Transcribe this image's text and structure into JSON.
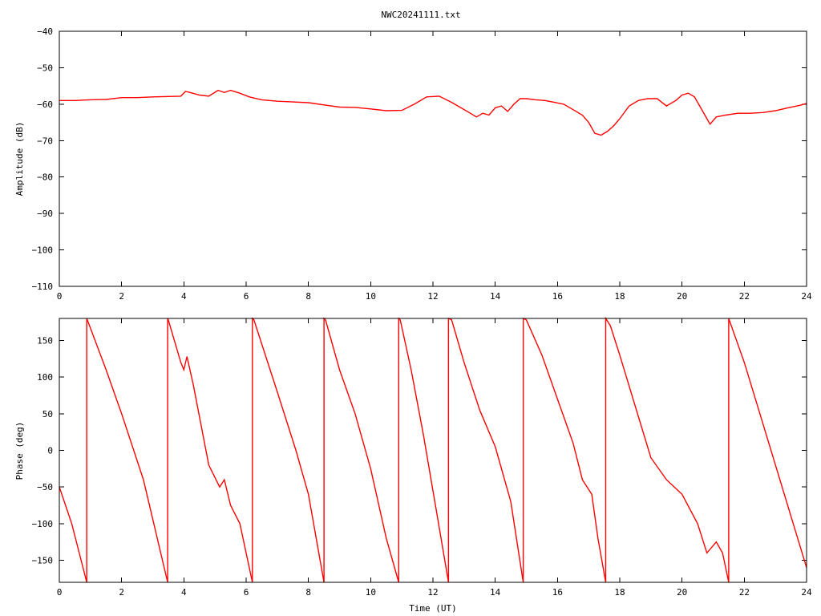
{
  "chart_data": [
    {
      "type": "line",
      "title": "NWC20241111.txt",
      "xlabel": "",
      "ylabel": "Amplitude (dB)",
      "xlim": [
        0,
        24
      ],
      "ylim": [
        -110,
        -40
      ],
      "x_ticks": [
        0,
        2,
        4,
        6,
        8,
        10,
        12,
        14,
        16,
        18,
        20,
        22,
        24
      ],
      "y_ticks": [
        -110,
        -100,
        -90,
        -80,
        -70,
        -60,
        -50,
        -40
      ],
      "line_color": "#ff0000",
      "series": [
        {
          "x": [
            0,
            0.5,
            1,
            1.5,
            2,
            2.5,
            3,
            3.5,
            3.9,
            4.05,
            4.2,
            4.5,
            4.8,
            5.1,
            5.3,
            5.5,
            5.8,
            6.1,
            6.5,
            7,
            7.5,
            8,
            8.5,
            9,
            9.5,
            10,
            10.5,
            11,
            11.4,
            11.8,
            12.2,
            12.6,
            12.9,
            13.2,
            13.4,
            13.6,
            13.8,
            14.0,
            14.2,
            14.4,
            14.6,
            14.8,
            15.0,
            15.3,
            15.6,
            15.9,
            16.2,
            16.5,
            16.8,
            17.0,
            17.2,
            17.4,
            17.6,
            17.8,
            18.0,
            18.3,
            18.6,
            18.9,
            19.2,
            19.5,
            19.8,
            20.0,
            20.2,
            20.4,
            20.6,
            20.8,
            20.9,
            21.1,
            21.4,
            21.8,
            22.2,
            22.6,
            23.0,
            23.4,
            23.8,
            24
          ],
          "values": [
            -59,
            -59,
            -58.8,
            -58.7,
            -58.2,
            -58.2,
            -58,
            -57.9,
            -57.8,
            -56.5,
            -56.8,
            -57.5,
            -57.8,
            -56.2,
            -56.8,
            -56.2,
            -57,
            -58,
            -58.8,
            -59.2,
            -59.4,
            -59.6,
            -60.2,
            -60.8,
            -60.9,
            -61.3,
            -61.8,
            -61.7,
            -60,
            -58,
            -57.8,
            -59.5,
            -61,
            -62.5,
            -63.5,
            -62.5,
            -63,
            -61,
            -60.5,
            -62,
            -60,
            -58.5,
            -58.5,
            -58.8,
            -59,
            -59.5,
            -60,
            -61.5,
            -63,
            -65,
            -68,
            -68.5,
            -67.5,
            -66,
            -64,
            -60.5,
            -59,
            -58.5,
            -58.5,
            -60.5,
            -59,
            -57.5,
            -57,
            -58,
            -61,
            -64,
            -65.5,
            -63.5,
            -63,
            -62.5,
            -62.5,
            -62.3,
            -61.8,
            -61,
            -60.3,
            -59.8
          ]
        }
      ]
    },
    {
      "type": "line",
      "title": "",
      "xlabel": "Time (UT)",
      "ylabel": "Phase (deg)",
      "xlim": [
        0,
        24
      ],
      "ylim": [
        -180,
        180
      ],
      "x_ticks": [
        0,
        2,
        4,
        6,
        8,
        10,
        12,
        14,
        16,
        18,
        20,
        22,
        24
      ],
      "y_ticks": [
        -150,
        -100,
        -50,
        0,
        50,
        100,
        150
      ],
      "line_color": "#ff0000",
      "series": [
        {
          "x": [
            0,
            0.4,
            0.88,
            0.88,
            0.9,
            1.5,
            2.0,
            2.7,
            3.48,
            3.48,
            3.5,
            3.9,
            4.0,
            4.1,
            4.3,
            4.8,
            5.15,
            5.3,
            5.5,
            5.8,
            6.2,
            6.2,
            6.25,
            7.0,
            7.6,
            8.0,
            8.5,
            8.5,
            8.55,
            9.0,
            9.5,
            10.0,
            10.5,
            10.9,
            10.9,
            10.95,
            11.3,
            11.7,
            12.1,
            12.5,
            12.5,
            12.6,
            13.0,
            13.5,
            14.0,
            14.5,
            14.9,
            14.9,
            15.0,
            15.5,
            16.0,
            16.5,
            16.8,
            17.1,
            17.3,
            17.55,
            17.55,
            17.7,
            18.0,
            18.5,
            19.0,
            19.5,
            20.0,
            20.5,
            20.8,
            21.1,
            21.3,
            21.5,
            21.5,
            22.0,
            22.5,
            23.0,
            23.5,
            24.0
          ],
          "values": [
            -50,
            -100,
            -180,
            180,
            178,
            110,
            50,
            -40,
            -180,
            180,
            178,
            120,
            110,
            128,
            90,
            -20,
            -50,
            -40,
            -75,
            -100,
            -180,
            180,
            178,
            80,
            0,
            -60,
            -180,
            180,
            178,
            110,
            50,
            -25,
            -120,
            -180,
            180,
            178,
            110,
            20,
            -80,
            -180,
            180,
            178,
            120,
            55,
            5,
            -70,
            -180,
            180,
            178,
            130,
            70,
            10,
            -40,
            -60,
            -120,
            -180,
            180,
            170,
            130,
            60,
            -10,
            -40,
            -60,
            -100,
            -140,
            -125,
            -140,
            -180,
            180,
            120,
            50,
            -20,
            -90,
            -160
          ]
        }
      ]
    }
  ]
}
